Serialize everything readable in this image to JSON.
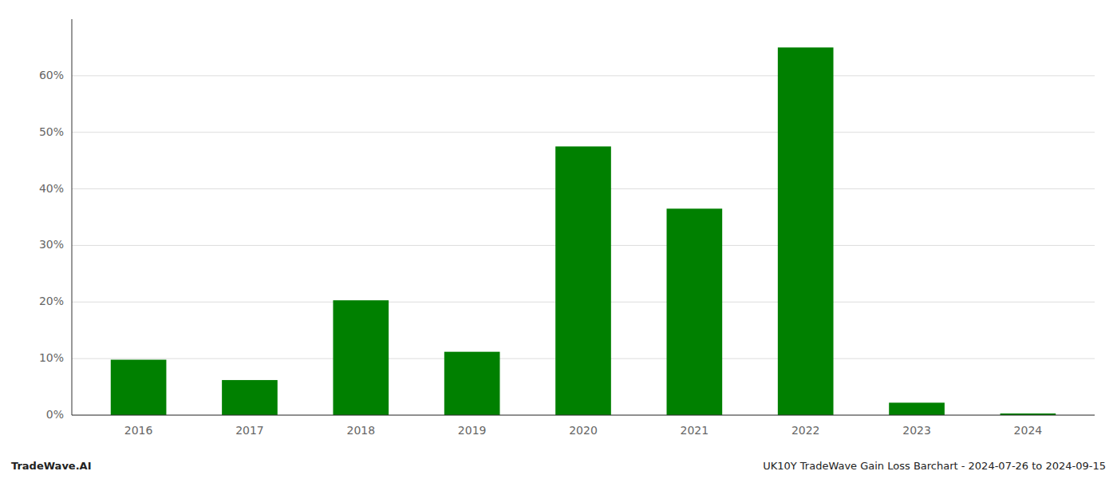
{
  "chart_data": {
    "type": "bar",
    "categories": [
      "2016",
      "2017",
      "2018",
      "2019",
      "2020",
      "2021",
      "2022",
      "2023",
      "2024"
    ],
    "values": [
      9.8,
      6.2,
      20.3,
      11.2,
      47.5,
      36.5,
      65.0,
      2.2,
      0.3
    ],
    "color": "#008000",
    "ylim": [
      0,
      70
    ],
    "yticks": [
      {
        "value": 0,
        "label": "0%"
      },
      {
        "value": 10,
        "label": "10%"
      },
      {
        "value": 20,
        "label": "20%"
      },
      {
        "value": 30,
        "label": "30%"
      },
      {
        "value": 40,
        "label": "40%"
      },
      {
        "value": 50,
        "label": "50%"
      },
      {
        "value": 60,
        "label": "60%"
      }
    ],
    "grid": true,
    "annotations": [
      "TradeWave.AI",
      "UK10Y TradeWave Gain Loss Barchart - 2024-07-26 to 2024-09-15"
    ]
  }
}
